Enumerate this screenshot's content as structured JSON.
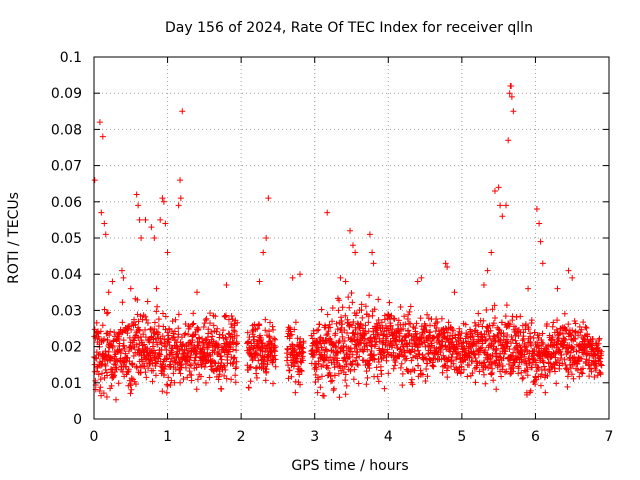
{
  "chart_data": {
    "type": "scatter",
    "title": "Day 156 of 2024, Rate Of TEC Index for receiver qlln",
    "xlabel": "GPS time / hours",
    "ylabel": "ROTI / TECUs",
    "xlim": [
      0,
      7
    ],
    "ylim": [
      0,
      0.1
    ],
    "xticks": [
      "0",
      "1",
      "2",
      "3",
      "4",
      "5",
      "6",
      "7"
    ],
    "yticks": [
      "0",
      "0.01",
      "0.02",
      "0.03",
      "0.04",
      "0.05",
      "0.06",
      "0.07",
      "0.08",
      "0.09",
      "0.1"
    ],
    "grid": true,
    "marker": "plus",
    "color": "#ff0000",
    "series": [
      {
        "name": "ROTI",
        "gaps": [
          [
            1.95,
            2.08
          ],
          [
            2.47,
            2.62
          ],
          [
            2.85,
            2.95
          ]
        ],
        "envelope": [
          {
            "x": 0.0,
            "low": 0.006,
            "high": 0.03
          },
          {
            "x": 0.3,
            "low": 0.004,
            "high": 0.034
          },
          {
            "x": 0.6,
            "low": 0.006,
            "high": 0.034
          },
          {
            "x": 1.0,
            "low": 0.007,
            "high": 0.03
          },
          {
            "x": 1.5,
            "low": 0.008,
            "high": 0.03
          },
          {
            "x": 1.9,
            "low": 0.008,
            "high": 0.03
          },
          {
            "x": 2.3,
            "low": 0.008,
            "high": 0.03
          },
          {
            "x": 2.7,
            "low": 0.007,
            "high": 0.028
          },
          {
            "x": 3.0,
            "low": 0.006,
            "high": 0.03
          },
          {
            "x": 3.5,
            "low": 0.006,
            "high": 0.036
          },
          {
            "x": 4.0,
            "low": 0.008,
            "high": 0.034
          },
          {
            "x": 4.5,
            "low": 0.01,
            "high": 0.03
          },
          {
            "x": 5.0,
            "low": 0.01,
            "high": 0.028
          },
          {
            "x": 5.5,
            "low": 0.008,
            "high": 0.032
          },
          {
            "x": 6.0,
            "low": 0.006,
            "high": 0.03
          },
          {
            "x": 6.5,
            "low": 0.009,
            "high": 0.03
          },
          {
            "x": 6.9,
            "low": 0.01,
            "high": 0.024
          }
        ],
        "outliers": [
          [
            0.01,
            0.066
          ],
          [
            0.08,
            0.082
          ],
          [
            0.12,
            0.078
          ],
          [
            0.1,
            0.057
          ],
          [
            0.14,
            0.054
          ],
          [
            0.16,
            0.051
          ],
          [
            0.38,
            0.041
          ],
          [
            0.4,
            0.039
          ],
          [
            0.58,
            0.062
          ],
          [
            0.6,
            0.059
          ],
          [
            0.62,
            0.055
          ],
          [
            0.64,
            0.05
          ],
          [
            0.7,
            0.055
          ],
          [
            0.78,
            0.053
          ],
          [
            0.82,
            0.05
          ],
          [
            0.9,
            0.055
          ],
          [
            0.93,
            0.061
          ],
          [
            0.95,
            0.06
          ],
          [
            0.97,
            0.054
          ],
          [
            1.0,
            0.046
          ],
          [
            1.15,
            0.059
          ],
          [
            1.17,
            0.066
          ],
          [
            1.18,
            0.061
          ],
          [
            1.2,
            0.085
          ],
          [
            2.3,
            0.046
          ],
          [
            2.34,
            0.05
          ],
          [
            2.37,
            0.061
          ],
          [
            3.17,
            0.057
          ],
          [
            3.48,
            0.052
          ],
          [
            3.52,
            0.048
          ],
          [
            3.55,
            0.046
          ],
          [
            3.75,
            0.051
          ],
          [
            3.78,
            0.046
          ],
          [
            3.8,
            0.043
          ],
          [
            4.78,
            0.043
          ],
          [
            4.8,
            0.042
          ],
          [
            5.4,
            0.046
          ],
          [
            5.45,
            0.063
          ],
          [
            5.5,
            0.064
          ],
          [
            5.52,
            0.059
          ],
          [
            5.55,
            0.056
          ],
          [
            5.6,
            0.059
          ],
          [
            5.63,
            0.077
          ],
          [
            5.65,
            0.09
          ],
          [
            5.66,
            0.092
          ],
          [
            5.67,
            0.092
          ],
          [
            5.68,
            0.089
          ],
          [
            5.7,
            0.085
          ],
          [
            6.02,
            0.058
          ],
          [
            6.05,
            0.054
          ],
          [
            6.07,
            0.049
          ],
          [
            6.1,
            0.043
          ],
          [
            6.45,
            0.041
          ],
          [
            6.5,
            0.039
          ],
          [
            0.2,
            0.035
          ],
          [
            0.25,
            0.038
          ],
          [
            0.5,
            0.036
          ],
          [
            0.85,
            0.036
          ],
          [
            1.4,
            0.035
          ],
          [
            1.8,
            0.037
          ],
          [
            2.25,
            0.038
          ],
          [
            2.7,
            0.039
          ],
          [
            2.8,
            0.04
          ],
          [
            3.35,
            0.039
          ],
          [
            3.42,
            0.038
          ],
          [
            4.4,
            0.038
          ],
          [
            4.45,
            0.039
          ],
          [
            4.9,
            0.035
          ],
          [
            5.3,
            0.037
          ],
          [
            5.35,
            0.041
          ],
          [
            5.9,
            0.036
          ],
          [
            6.3,
            0.036
          ]
        ]
      }
    ]
  }
}
